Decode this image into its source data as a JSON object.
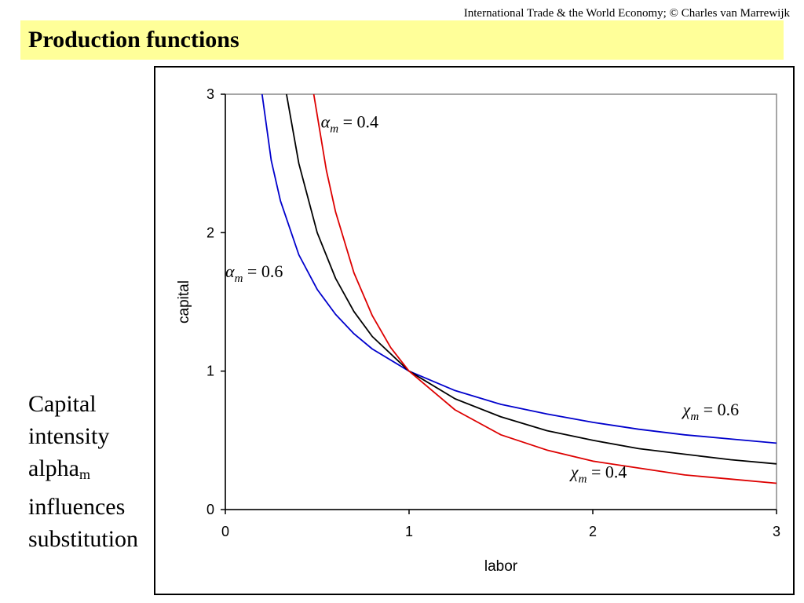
{
  "header": {
    "credit": "International Trade & the World Economy;  © Charles van Marrewijk",
    "title": "Production functions"
  },
  "side_note": {
    "line1": "Capital",
    "line2": "intensity",
    "line3_main": "alpha",
    "line3_sub": "m",
    "line4": "influences",
    "line5": "substitution"
  },
  "chart_data": {
    "type": "line",
    "title": "",
    "xlabel": "labor",
    "ylabel": "capital",
    "xlim": [
      0,
      3
    ],
    "ylim": [
      0,
      3
    ],
    "xticks": [
      "0",
      "1",
      "2",
      "3"
    ],
    "yticks": [
      "0",
      "1",
      "2",
      "3"
    ],
    "grid": false,
    "series": [
      {
        "name": "alpha_m = 0.6",
        "color": "#0000cc",
        "x": [
          0.2,
          0.25,
          0.3,
          0.4,
          0.5,
          0.6,
          0.7,
          0.8,
          1.0,
          1.25,
          1.5,
          1.75,
          2.0,
          2.25,
          2.5,
          2.75,
          3.0
        ],
        "y": [
          3.0,
          2.52,
          2.23,
          1.84,
          1.59,
          1.41,
          1.27,
          1.16,
          1.0,
          0.86,
          0.76,
          0.69,
          0.63,
          0.58,
          0.54,
          0.51,
          0.48
        ]
      },
      {
        "name": "",
        "color": "#000000",
        "x": [
          0.333,
          0.4,
          0.5,
          0.6,
          0.7,
          0.8,
          1.0,
          1.25,
          1.5,
          1.75,
          2.0,
          2.25,
          2.5,
          2.75,
          3.0
        ],
        "y": [
          3.0,
          2.5,
          2.0,
          1.67,
          1.43,
          1.25,
          1.0,
          0.8,
          0.67,
          0.57,
          0.5,
          0.44,
          0.4,
          0.36,
          0.33
        ]
      },
      {
        "name": "alpha_m = 0.4",
        "color": "#dd0000",
        "x": [
          0.481,
          0.55,
          0.6,
          0.7,
          0.8,
          0.9,
          1.0,
          1.25,
          1.5,
          1.75,
          2.0,
          2.25,
          2.5,
          2.75,
          3.0
        ],
        "y": [
          3.0,
          2.45,
          2.15,
          1.71,
          1.4,
          1.17,
          1.0,
          0.72,
          0.54,
          0.43,
          0.35,
          0.3,
          0.25,
          0.22,
          0.19
        ]
      }
    ],
    "annotations": [
      {
        "greek": "α",
        "sub": "m",
        "rest": " = 0.4",
        "at_x": 0.52,
        "at_y": 2.76
      },
      {
        "greek": "α",
        "sub": "m",
        "rest": " = 0.6",
        "at_x": 0.0,
        "at_y": 1.68
      },
      {
        "greek": "χ",
        "sub": "m",
        "rest": " = 0.6",
        "at_x": 2.49,
        "at_y": 0.68
      },
      {
        "greek": "χ",
        "sub": "m",
        "rest": " = 0.4",
        "at_x": 1.88,
        "at_y": 0.23
      }
    ]
  }
}
